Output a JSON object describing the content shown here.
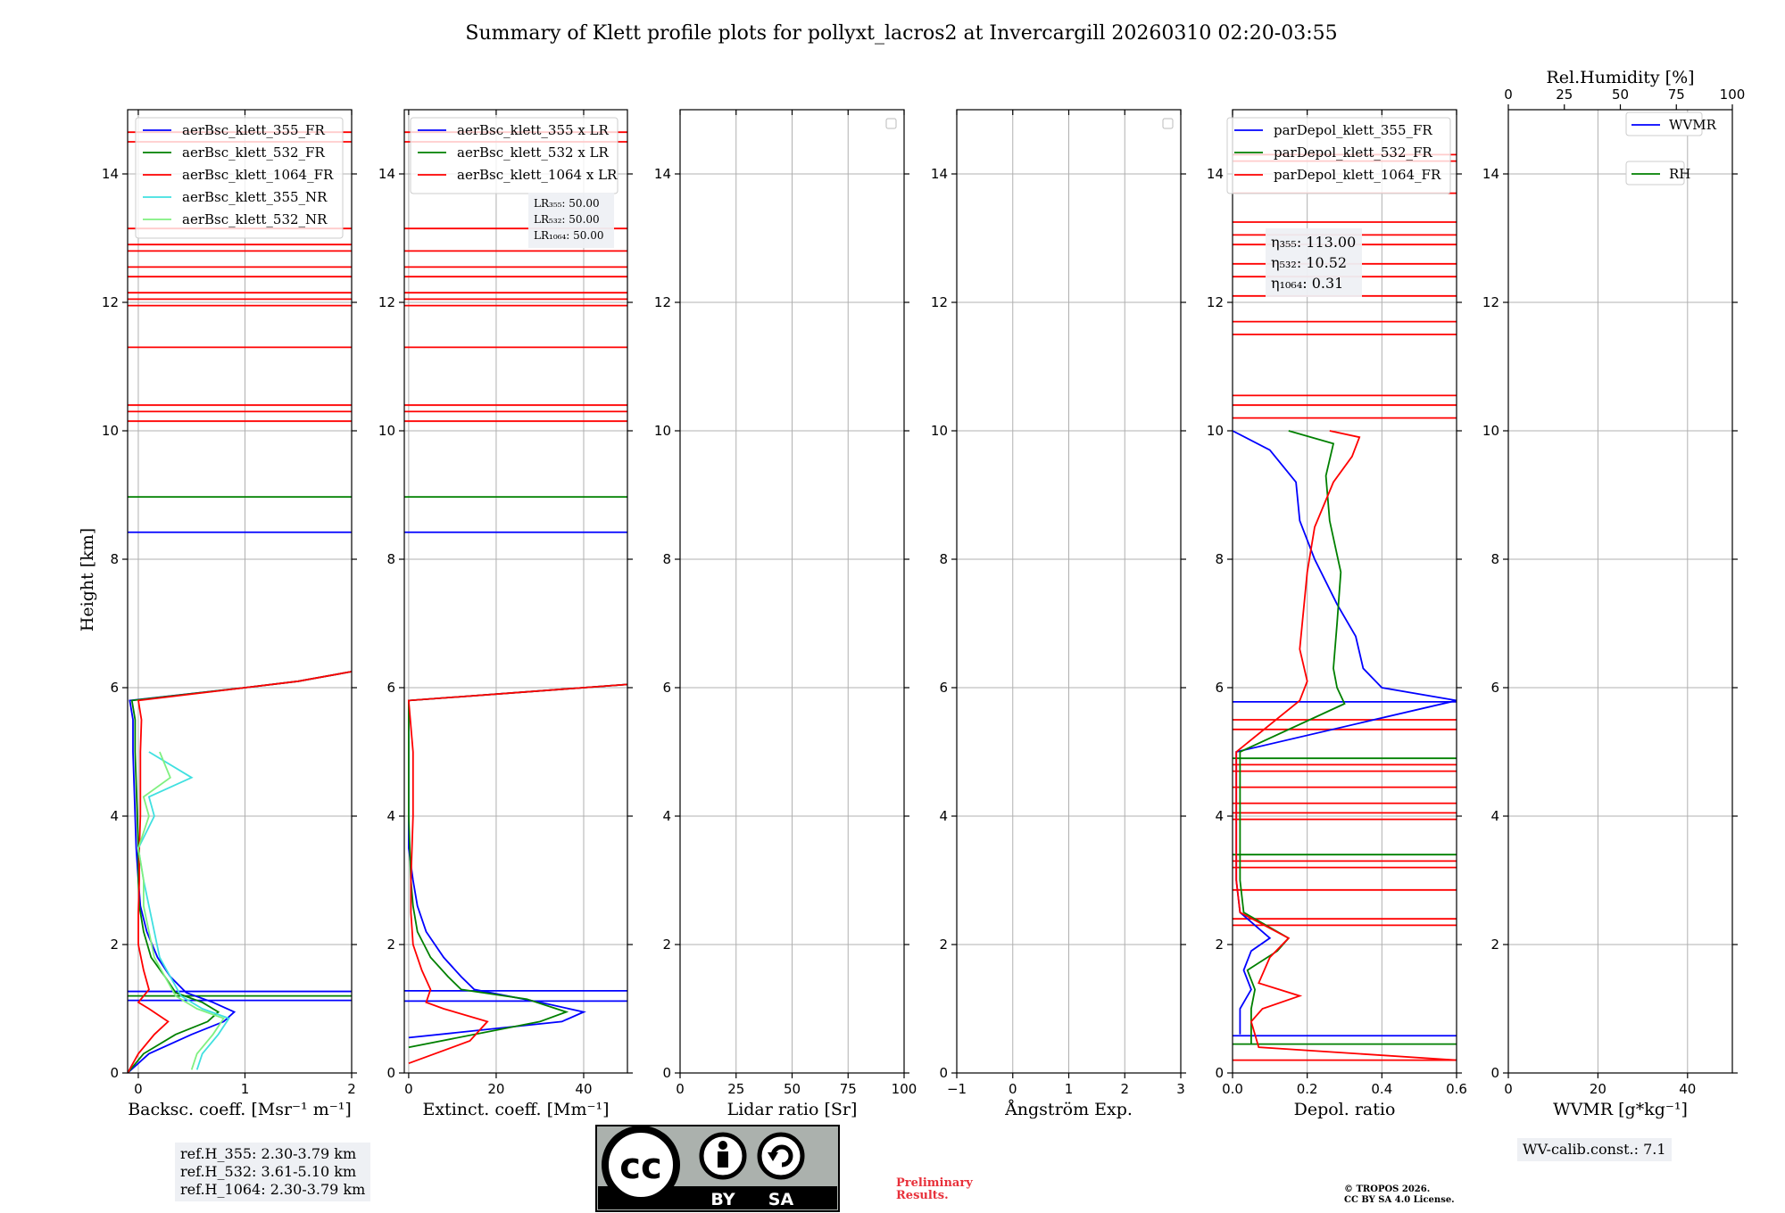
{
  "title": "Summary of Klett profile plots for pollyxt_lacros2 at Invercargill 20260310 02:20-03:55",
  "colors": {
    "blue": "#0000ff",
    "green": "#008000",
    "red": "#ff0000",
    "cyan": "#40e0e0",
    "lightgreen": "#80f080",
    "grid": "#b0b0b0"
  },
  "ylabel": "Height [km]",
  "chart_data": [
    {
      "type": "line",
      "id": "bsc",
      "xlabel": "Backsc. coeff. [Msr⁻¹ m⁻¹]",
      "xlim": [
        -0.1,
        2
      ],
      "ylim": [
        0,
        15
      ],
      "xticks": [
        0,
        1,
        2
      ],
      "xtick_labels": [
        "0",
        "1",
        "2"
      ],
      "yticks": [
        0,
        2,
        4,
        6,
        8,
        10,
        12,
        14
      ],
      "ytick_labels": [
        "0",
        "2",
        "4",
        "6",
        "8",
        "10",
        "12",
        "14"
      ],
      "legend": [
        {
          "label": "aerBsc_klett_355_FR",
          "color": "#0000ff"
        },
        {
          "label": "aerBsc_klett_532_FR",
          "color": "#008000"
        },
        {
          "label": "aerBsc_klett_1064_FR",
          "color": "#ff0000"
        },
        {
          "label": "aerBsc_klett_355_NR",
          "color": "#40e0e0"
        },
        {
          "label": "aerBsc_klett_532_NR",
          "color": "#80f080"
        }
      ],
      "series": [
        {
          "name": "aerBsc_klett_355_FR",
          "color": "#0000ff",
          "h": [
            0,
            0.3,
            0.6,
            0.8,
            0.95,
            1.1,
            1.25,
            1.5,
            1.8,
            2.2,
            2.6,
            3,
            3.5,
            4,
            4.5,
            5,
            5.5,
            5.8,
            6,
            6.1,
            6.25
          ],
          "v": [
            -0.1,
            0.1,
            0.5,
            0.8,
            0.9,
            0.7,
            0.45,
            0.3,
            0.18,
            0.08,
            0.02,
            0.0,
            -0.02,
            -0.03,
            -0.04,
            -0.05,
            -0.05,
            -0.08,
            1.0,
            1.5,
            2.0
          ]
        },
        {
          "name": "aerBsc_klett_532_FR",
          "color": "#008000",
          "h": [
            0,
            0.3,
            0.6,
            0.8,
            0.95,
            1.1,
            1.25,
            1.5,
            1.8,
            2.2,
            2.6,
            3,
            3.5,
            4,
            4.5,
            5,
            5.5,
            5.8,
            6,
            6.1,
            6.25
          ],
          "v": [
            -0.1,
            0.05,
            0.35,
            0.65,
            0.75,
            0.6,
            0.35,
            0.25,
            0.12,
            0.05,
            0.01,
            0.0,
            0.0,
            -0.01,
            -0.02,
            -0.03,
            -0.03,
            -0.06,
            1.0,
            1.5,
            2.0
          ]
        },
        {
          "name": "aerBsc_klett_1064_FR",
          "color": "#ff0000",
          "h": [
            0,
            0.3,
            0.6,
            0.8,
            1.0,
            1.1,
            1.3,
            1.6,
            2.0,
            2.5,
            3,
            3.5,
            4,
            4.5,
            5,
            5.5,
            5.8,
            6,
            6.1,
            6.25
          ],
          "v": [
            -0.1,
            0.0,
            0.15,
            0.28,
            0.1,
            0.0,
            0.1,
            0.05,
            0.0,
            0.0,
            0.01,
            0.01,
            0.02,
            0.02,
            0.02,
            0.03,
            0.0,
            1.0,
            1.5,
            2.0
          ]
        },
        {
          "name": "aerBsc_klett_355_NR",
          "color": "#40e0e0",
          "h": [
            0.05,
            0.3,
            0.6,
            0.85,
            1.0,
            1.2,
            1.5,
            1.8,
            2.2,
            2.6,
            3,
            3.5,
            4,
            4.3,
            4.6,
            5
          ],
          "v": [
            0.55,
            0.6,
            0.75,
            0.85,
            0.6,
            0.4,
            0.3,
            0.2,
            0.15,
            0.1,
            0.05,
            0.0,
            0.15,
            0.1,
            0.5,
            0.1
          ]
        },
        {
          "name": "aerBsc_klett_532_NR",
          "color": "#80f080",
          "h": [
            0.05,
            0.3,
            0.6,
            0.85,
            1.0,
            1.2,
            1.5,
            1.8,
            2.2,
            2.6,
            3,
            3.5,
            4,
            4.3,
            4.6,
            5
          ],
          "v": [
            0.5,
            0.55,
            0.7,
            0.8,
            0.55,
            0.35,
            0.25,
            0.15,
            0.1,
            0.05,
            0.05,
            0.0,
            0.1,
            0.05,
            0.3,
            0.2
          ]
        }
      ],
      "hlines": [
        {
          "color": "#0000ff",
          "h": 8.42
        },
        {
          "color": "#008000",
          "h": 8.97
        },
        {
          "color": "#0000ff",
          "h": 1.13
        },
        {
          "color": "#0000ff",
          "h": 1.27
        },
        {
          "color": "#008000",
          "h": 1.2
        },
        {
          "color": "#ff0000",
          "h": 10.15
        },
        {
          "color": "#ff0000",
          "h": 10.3
        },
        {
          "color": "#ff0000",
          "h": 10.4
        },
        {
          "color": "#ff0000",
          "h": 11.3
        },
        {
          "color": "#ff0000",
          "h": 11.95
        },
        {
          "color": "#ff0000",
          "h": 12.05
        },
        {
          "color": "#ff0000",
          "h": 12.15
        },
        {
          "color": "#ff0000",
          "h": 12.4
        },
        {
          "color": "#ff0000",
          "h": 12.55
        },
        {
          "color": "#ff0000",
          "h": 12.8
        },
        {
          "color": "#ff0000",
          "h": 12.9
        },
        {
          "color": "#ff0000",
          "h": 13.15
        },
        {
          "color": "#ff0000",
          "h": 14.5
        },
        {
          "color": "#ff0000",
          "h": 14.65
        }
      ]
    },
    {
      "type": "line",
      "id": "ext",
      "xlabel": "Extinct. coeff. [Mm⁻¹]",
      "xlim": [
        -1,
        50
      ],
      "ylim": [
        0,
        15
      ],
      "xticks": [
        0,
        20,
        40
      ],
      "xtick_labels": [
        "0",
        "20",
        "40"
      ],
      "yticks": [
        0,
        2,
        4,
        6,
        8,
        10,
        12,
        14
      ],
      "ytick_labels": [
        "0",
        "2",
        "4",
        "6",
        "8",
        "10",
        "12",
        "14"
      ],
      "legend": [
        {
          "label": "aerBsc_klett_355 x LR",
          "color": "#0000ff"
        },
        {
          "label": "aerBsc_klett_532 x LR",
          "color": "#008000"
        },
        {
          "label": "aerBsc_klett_1064 x LR",
          "color": "#ff0000"
        }
      ],
      "annotation": [
        "LR₃₅₅: 50.00",
        "LR₅₃₂: 50.00",
        "LR₁₀₆₄: 50.00"
      ],
      "series": [
        {
          "name": "355",
          "color": "#0000ff",
          "h": [
            0.55,
            0.8,
            0.95,
            1.1,
            1.3,
            1.5,
            1.8,
            2.2,
            2.6,
            3,
            3.5,
            4,
            4.5,
            5,
            5.5,
            5.8,
            6,
            6.05
          ],
          "v": [
            0,
            35,
            40,
            30,
            15,
            12,
            8,
            4,
            2,
            1,
            0,
            0,
            0,
            0,
            0,
            0,
            40,
            50
          ]
        },
        {
          "name": "532",
          "color": "#008000",
          "h": [
            0.4,
            0.8,
            0.95,
            1.15,
            1.3,
            1.5,
            1.8,
            2.2,
            2.6,
            3,
            4,
            5,
            5.8,
            6,
            6.05
          ],
          "v": [
            0,
            30,
            36,
            27,
            12,
            9,
            5,
            2,
            1,
            0.5,
            0,
            0,
            0,
            40,
            50
          ]
        },
        {
          "name": "1064",
          "color": "#ff0000",
          "h": [
            0.15,
            0.5,
            0.8,
            1.0,
            1.1,
            1.3,
            1.6,
            2.0,
            2.5,
            3,
            4,
            5,
            5.8,
            6,
            6.05
          ],
          "v": [
            0,
            14,
            18,
            8,
            4,
            5,
            3,
            1,
            0.5,
            0.5,
            1,
            1,
            0,
            40,
            50
          ]
        }
      ],
      "hlines": [
        {
          "color": "#0000ff",
          "h": 8.42
        },
        {
          "color": "#008000",
          "h": 8.97
        },
        {
          "color": "#0000ff",
          "h": 1.12
        },
        {
          "color": "#0000ff",
          "h": 1.28
        },
        {
          "color": "#ff0000",
          "h": 10.15
        },
        {
          "color": "#ff0000",
          "h": 10.3
        },
        {
          "color": "#ff0000",
          "h": 10.4
        },
        {
          "color": "#ff0000",
          "h": 11.3
        },
        {
          "color": "#ff0000",
          "h": 11.95
        },
        {
          "color": "#ff0000",
          "h": 12.05
        },
        {
          "color": "#ff0000",
          "h": 12.15
        },
        {
          "color": "#ff0000",
          "h": 12.4
        },
        {
          "color": "#ff0000",
          "h": 12.55
        },
        {
          "color": "#ff0000",
          "h": 12.8
        },
        {
          "color": "#ff0000",
          "h": 13.15
        },
        {
          "color": "#ff0000",
          "h": 14.5
        },
        {
          "color": "#ff0000",
          "h": 14.65
        }
      ]
    },
    {
      "type": "line",
      "id": "lr",
      "xlabel": "Lidar ratio [Sr]",
      "xlim": [
        0,
        100
      ],
      "ylim": [
        0,
        15
      ],
      "xticks": [
        0,
        25,
        50,
        75,
        100
      ],
      "xtick_labels": [
        "0",
        "25",
        "50",
        "75",
        "100"
      ],
      "yticks": [
        0,
        2,
        4,
        6,
        8,
        10,
        12,
        14
      ],
      "ytick_labels": [
        "0",
        "2",
        "4",
        "6",
        "8",
        "10",
        "12",
        "14"
      ],
      "series": []
    },
    {
      "type": "line",
      "id": "ang",
      "xlabel": "Ångström Exp.",
      "xlim": [
        -1,
        3
      ],
      "ylim": [
        0,
        15
      ],
      "xticks": [
        -1,
        0,
        1,
        2,
        3
      ],
      "xtick_labels": [
        "−1",
        "0",
        "1",
        "2",
        "3"
      ],
      "yticks": [
        0,
        2,
        4,
        6,
        8,
        10,
        12,
        14
      ],
      "ytick_labels": [
        "0",
        "2",
        "4",
        "6",
        "8",
        "10",
        "12",
        "14"
      ],
      "series": []
    },
    {
      "type": "line",
      "id": "dep",
      "xlabel": "Depol. ratio",
      "xlim": [
        0,
        0.6
      ],
      "ylim": [
        0,
        15
      ],
      "xticks": [
        0,
        0.2,
        0.4,
        0.6
      ],
      "xtick_labels": [
        "0.0",
        "0.2",
        "0.4",
        "0.6"
      ],
      "yticks": [
        0,
        2,
        4,
        6,
        8,
        10,
        12,
        14
      ],
      "ytick_labels": [
        "0",
        "2",
        "4",
        "6",
        "8",
        "10",
        "12",
        "14"
      ],
      "legend": [
        {
          "label": "parDepol_klett_355_FR",
          "color": "#0000ff"
        },
        {
          "label": "parDepol_klett_532_FR",
          "color": "#008000"
        },
        {
          "label": "parDepol_klett_1064_FR",
          "color": "#ff0000"
        }
      ],
      "annotation": [
        "η₃₅₅: 113.00",
        "η₅₃₂: 10.52",
        "η₁₀₆₄: 0.31"
      ],
      "series": [
        {
          "name": "355",
          "color": "#0000ff",
          "h": [
            0.6,
            1.0,
            1.3,
            1.6,
            1.9,
            2.1,
            2.5,
            3,
            4,
            5,
            5.8,
            6.0,
            6.3,
            6.8,
            7.3,
            8.0,
            8.6,
            9.2,
            9.7,
            10.0
          ],
          "v": [
            0.02,
            0.02,
            0.05,
            0.03,
            0.05,
            0.1,
            0.02,
            0.01,
            0.01,
            0.01,
            0.6,
            0.4,
            0.35,
            0.33,
            0.28,
            0.22,
            0.18,
            0.17,
            0.1,
            0.0
          ]
        },
        {
          "name": "532",
          "color": "#008000",
          "h": [
            0.45,
            1.0,
            1.3,
            1.6,
            1.9,
            2.1,
            2.5,
            3,
            4,
            5,
            5.75,
            6.0,
            6.3,
            7.0,
            7.8,
            8.6,
            9.3,
            9.8,
            10.0
          ],
          "v": [
            0.05,
            0.05,
            0.06,
            0.04,
            0.12,
            0.15,
            0.03,
            0.02,
            0.02,
            0.02,
            0.3,
            0.28,
            0.27,
            0.28,
            0.29,
            0.26,
            0.25,
            0.27,
            0.15
          ]
        },
        {
          "name": "1064",
          "color": "#ff0000",
          "h": [
            0.2,
            0.4,
            0.8,
            1.0,
            1.2,
            1.4,
            1.8,
            2.1,
            2.5,
            3,
            4,
            5,
            5.8,
            6.1,
            6.6,
            7.2,
            7.8,
            8.5,
            9.2,
            9.6,
            9.9,
            10.0
          ],
          "v": [
            0.6,
            0.07,
            0.05,
            0.08,
            0.18,
            0.07,
            0.1,
            0.15,
            0.02,
            0.01,
            0.01,
            0.01,
            0.18,
            0.2,
            0.18,
            0.19,
            0.2,
            0.22,
            0.27,
            0.32,
            0.34,
            0.26
          ]
        }
      ],
      "hlines": [
        {
          "color": "#0000ff",
          "h": 0.58
        },
        {
          "color": "#008000",
          "h": 0.45
        },
        {
          "color": "#ff0000",
          "h": 0.2
        },
        {
          "color": "#0000ff",
          "h": 5.78
        },
        {
          "color": "#ff0000",
          "h": 5.35
        },
        {
          "color": "#ff0000",
          "h": 5.5
        },
        {
          "color": "#ff0000",
          "h": 4.8
        },
        {
          "color": "#008000",
          "h": 4.9
        },
        {
          "color": "#ff0000",
          "h": 4.7
        },
        {
          "color": "#ff0000",
          "h": 4.45
        },
        {
          "color": "#ff0000",
          "h": 4.2
        },
        {
          "color": "#ff0000",
          "h": 4.05
        },
        {
          "color": "#ff0000",
          "h": 3.95
        },
        {
          "color": "#008000",
          "h": 3.4
        },
        {
          "color": "#ff0000",
          "h": 3.3
        },
        {
          "color": "#ff0000",
          "h": 3.2
        },
        {
          "color": "#ff0000",
          "h": 2.85
        },
        {
          "color": "#ff0000",
          "h": 2.4
        },
        {
          "color": "#ff0000",
          "h": 2.3
        },
        {
          "color": "#ff0000",
          "h": 10.2
        },
        {
          "color": "#ff0000",
          "h": 10.4
        },
        {
          "color": "#ff0000",
          "h": 10.55
        },
        {
          "color": "#ff0000",
          "h": 11.5
        },
        {
          "color": "#ff0000",
          "h": 11.7
        },
        {
          "color": "#ff0000",
          "h": 12.1
        },
        {
          "color": "#ff0000",
          "h": 12.4
        },
        {
          "color": "#ff0000",
          "h": 12.6
        },
        {
          "color": "#ff0000",
          "h": 12.9
        },
        {
          "color": "#ff0000",
          "h": 13.05
        },
        {
          "color": "#ff0000",
          "h": 13.25
        },
        {
          "color": "#ff0000",
          "h": 13.7
        },
        {
          "color": "#ff0000",
          "h": 14.2
        },
        {
          "color": "#ff0000",
          "h": 14.3
        }
      ]
    },
    {
      "type": "line",
      "id": "wv",
      "xlabel": "WVMR [g*kg⁻¹]",
      "xlim": [
        0,
        50
      ],
      "ylim": [
        0,
        15
      ],
      "xticks": [
        0,
        20,
        40
      ],
      "xtick_labels": [
        "0",
        "20",
        "40"
      ],
      "yticks": [
        0,
        2,
        4,
        6,
        8,
        10,
        12,
        14
      ],
      "ytick_labels": [
        "0",
        "2",
        "4",
        "6",
        "8",
        "10",
        "12",
        "14"
      ],
      "top_xlabel": "Rel.Humidity [%]",
      "top_xlim": [
        0,
        100
      ],
      "top_xticks": [
        0,
        25,
        50,
        75,
        100
      ],
      "top_xtick_labels": [
        "0",
        "25",
        "50",
        "75",
        "100"
      ],
      "legend": [
        {
          "label": "WVMR",
          "color": "#0000ff"
        },
        {
          "label": "RH",
          "color": "#008000"
        }
      ],
      "series": []
    }
  ],
  "refbox": [
    "ref.H_355: 2.30-3.79 km",
    "ref.H_532: 3.61-5.10 km",
    "ref.H_1064: 2.30-3.79 km"
  ],
  "wvcalib": "WV-calib.const.: 7.1",
  "prelim": [
    "Preliminary",
    "Results."
  ],
  "copyright": [
    "© TROPOS 2026.",
    "CC BY SA 4.0 License."
  ],
  "cc": {
    "main": "cc",
    "by": "BY",
    "sa": "SA"
  }
}
